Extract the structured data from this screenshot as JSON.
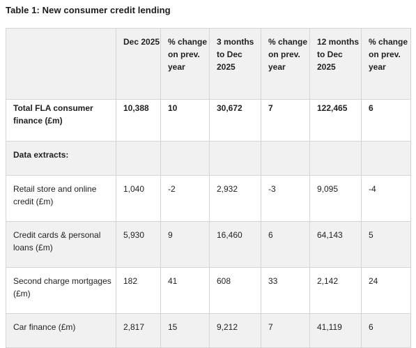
{
  "title": "Table 1: New consumer credit lending",
  "table": {
    "headers": [
      "",
      "Dec 2025",
      "% change on prev. year",
      "3 months to Dec 2025",
      "% change on prev. year",
      "12 months to Dec 2025",
      "% change on prev. year"
    ],
    "total": {
      "label": "Total FLA consumer finance (£m)",
      "values": [
        "10,388",
        "10",
        "30,672",
        "7",
        "122,465",
        "6"
      ]
    },
    "extracts_label": "Data extracts:",
    "rows": [
      {
        "label": "Retail store and online credit (£m)",
        "values": [
          "1,040",
          "-2",
          "2,932",
          "-3",
          "9,095",
          "-4"
        ]
      },
      {
        "label": "Credit cards & personal loans (£m)",
        "values": [
          "5,930",
          "9",
          "16,460",
          "6",
          "64,143",
          "5"
        ]
      },
      {
        "label": "Second charge mortgages (£m)",
        "values": [
          "182",
          "41",
          "608",
          "33",
          "2,142",
          "24"
        ]
      },
      {
        "label": "Car finance (£m)",
        "values": [
          "2,817",
          "15",
          "9,212",
          "7",
          "41,119",
          "6"
        ]
      }
    ]
  }
}
